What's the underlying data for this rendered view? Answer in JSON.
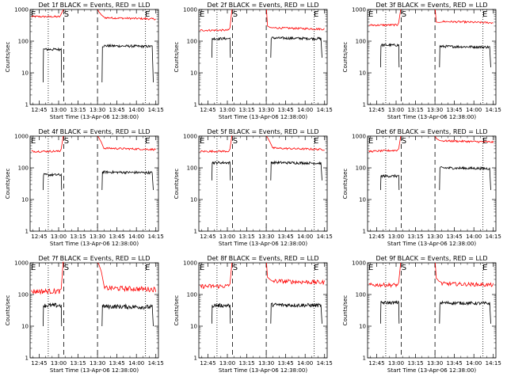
{
  "chart_data": {
    "type": "line",
    "layout": {
      "rows": 3,
      "cols": 3
    },
    "x_axis": {
      "label": "Start Time (13-Apr-06 12:38:00)",
      "ticks": [
        "12:45",
        "13:00",
        "13:15",
        "13:30",
        "13:45",
        "14:00",
        "14:15"
      ],
      "range_minutes": [
        0,
        99
      ]
    },
    "y_axis": {
      "label": "Counts/sec",
      "scale": "log",
      "range": [
        1,
        1000
      ],
      "ticks": [
        "1",
        "10",
        "100",
        "1000"
      ]
    },
    "markers": {
      "dotted_min": [
        14,
        89
      ],
      "dashed_min": [
        26,
        52
      ],
      "letters": [
        {
          "text": "E",
          "at_min": 0
        },
        {
          "text": "S",
          "at_min": 25.5
        },
        {
          "text": "E",
          "at_min": 88
        }
      ]
    },
    "series_styles": [
      {
        "name": "BLACK",
        "color": "#000000"
      },
      {
        "name": "RED",
        "color": "#ff0000"
      }
    ],
    "panels": [
      {
        "title": "Det 1f BLACK = Events, RED = LLD",
        "red": {
          "start": 600,
          "end": 500,
          "spike_left": 800,
          "spike_right": 850,
          "noise": 0.03
        },
        "black": {
          "start": 55,
          "end": 68,
          "drop_to": 5,
          "noise": 0.04
        }
      },
      {
        "title": "Det 2f BLACK = Events, RED = LLD",
        "red": {
          "start": 220,
          "end": 240,
          "spike_left": 800,
          "spike_right": 300,
          "noise": 0.03
        },
        "black": {
          "start": 120,
          "end": 120,
          "drop_to": 30,
          "noise": 0.04
        }
      },
      {
        "title": "Det 3f BLACK = Events, RED = LLD",
        "red": {
          "start": 320,
          "end": 380,
          "spike_left": 800,
          "spike_right": 400,
          "noise": 0.03
        },
        "black": {
          "start": 75,
          "end": 65,
          "drop_to": 15,
          "noise": 0.04
        }
      },
      {
        "title": "Det 4f BLACK = Events, RED = LLD",
        "red": {
          "start": 330,
          "end": 380,
          "spike_left": 800,
          "spike_right": 900,
          "noise": 0.03
        },
        "black": {
          "start": 60,
          "end": 70,
          "drop_to": 20,
          "noise": 0.04
        }
      },
      {
        "title": "Det 5f BLACK = Events, RED = LLD",
        "red": {
          "start": 330,
          "end": 380,
          "spike_left": 850,
          "spike_right": 900,
          "noise": 0.03
        },
        "black": {
          "start": 145,
          "end": 140,
          "drop_to": 40,
          "noise": 0.04
        }
      },
      {
        "title": "Det 6f BLACK = Events, RED = LLD",
        "red": {
          "start": 330,
          "end": 650,
          "spike_left": 800,
          "spike_right": 850,
          "noise": 0.03
        },
        "black": {
          "start": 55,
          "end": 95,
          "drop_to": 20,
          "noise": 0.04
        }
      },
      {
        "title": "Det 7f BLACK = Events, RED = LLD",
        "red": {
          "start": 125,
          "end": 145,
          "spike_left": 900,
          "spike_right": 900,
          "noise": 0.08
        },
        "black": {
          "start": 45,
          "end": 40,
          "drop_to": 10,
          "noise": 0.07
        }
      },
      {
        "title": "Det 8f BLACK = Events, RED = LLD",
        "red": {
          "start": 180,
          "end": 240,
          "spike_left": 800,
          "spike_right": 350,
          "noise": 0.07
        },
        "black": {
          "start": 45,
          "end": 45,
          "drop_to": 12,
          "noise": 0.06
        }
      },
      {
        "title": "Det 9f BLACK = Events, RED = LLD",
        "red": {
          "start": 200,
          "end": 200,
          "spike_left": 800,
          "spike_right": 330,
          "noise": 0.06
        },
        "black": {
          "start": 55,
          "end": 52,
          "drop_to": 12,
          "noise": 0.05
        }
      }
    ]
  }
}
